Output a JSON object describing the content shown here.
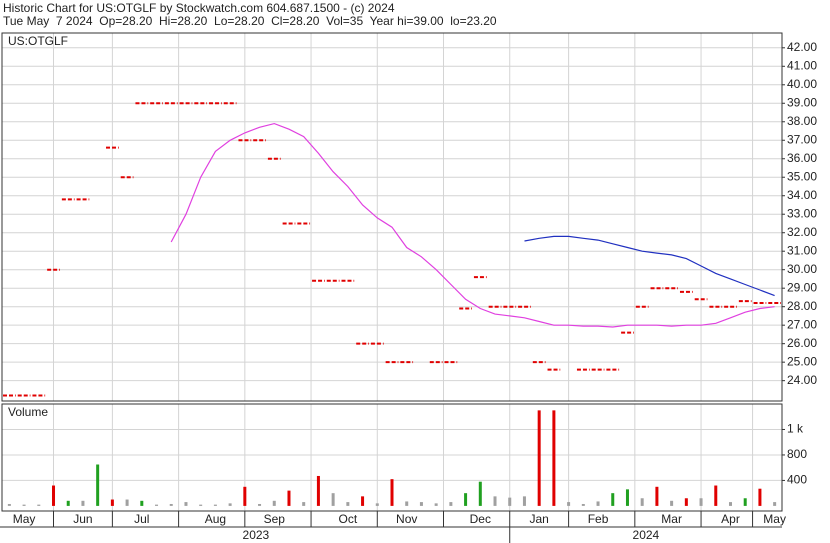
{
  "chart_data": [
    {
      "type": "line",
      "title": "Historic Chart for US:OTGLF by Stockwatch.com 604.687.1500 - (c) 2024",
      "subtitle": "Tue May  7 2024  Op=28.20  Hi=28.20  Lo=28.20  Cl=28.20  Vol=35  Year hi=39.00  lo=23.20",
      "label": "US:OTGLF",
      "ylim": [
        22.9,
        42.8
      ],
      "yticks": [
        {
          "value": 24,
          "label": "24.00"
        },
        {
          "value": 25,
          "label": "25.00"
        },
        {
          "value": 26,
          "label": "26.00"
        },
        {
          "value": 27,
          "label": "27.00"
        },
        {
          "value": 28,
          "label": "28.00"
        },
        {
          "value": 29,
          "label": "29.00"
        },
        {
          "value": 30,
          "label": "30.00"
        },
        {
          "value": 31,
          "label": "31.00"
        },
        {
          "value": 32,
          "label": "32.00"
        },
        {
          "value": 33,
          "label": "33.00"
        },
        {
          "value": 34,
          "label": "34.00"
        },
        {
          "value": 35,
          "label": "35.00"
        },
        {
          "value": 36,
          "label": "36.00"
        },
        {
          "value": 37,
          "label": "37.00"
        },
        {
          "value": 38,
          "label": "38.00"
        },
        {
          "value": 39,
          "label": "39.00"
        },
        {
          "value": 40,
          "label": "40.00"
        },
        {
          "value": 41,
          "label": "41.00"
        },
        {
          "value": 42,
          "label": "42.00"
        }
      ],
      "grid": true,
      "series": [
        {
          "color": "#e00000",
          "style": "dash",
          "values": [
            23.2,
            23.2,
            23.2,
            30.0,
            33.8,
            33.8,
            null,
            36.6,
            35.0,
            39.0,
            39.0,
            39.0,
            39.0,
            39.0,
            39.0,
            39.0,
            37.0,
            37.0,
            36.0,
            32.5,
            32.5,
            29.4,
            29.4,
            29.4,
            26.0,
            26.0,
            25.0,
            25.0,
            null,
            25.0,
            25.0,
            27.9,
            29.6,
            28.0,
            28.0,
            28.0,
            25.0,
            24.6,
            null,
            24.6,
            24.6,
            24.6,
            26.6,
            28.0,
            29.0,
            29.0,
            28.8,
            28.4,
            28.0,
            28.0,
            28.3,
            28.2,
            28.2
          ]
        },
        {
          "color": "#e040e0",
          "style": "line",
          "values": [
            null,
            null,
            null,
            null,
            null,
            null,
            null,
            null,
            null,
            null,
            null,
            31.5,
            33.0,
            35.0,
            36.4,
            37.0,
            37.4,
            37.7,
            37.9,
            37.6,
            37.2,
            36.3,
            35.3,
            34.5,
            33.5,
            32.8,
            32.3,
            31.2,
            30.7,
            30.0,
            29.2,
            28.4,
            27.9,
            27.6,
            27.5,
            27.4,
            27.2,
            27.0,
            27.0,
            26.95,
            26.95,
            26.9,
            27.0,
            27.0,
            27.0,
            26.95,
            27.0,
            27.0,
            27.1,
            27.4,
            27.7,
            27.9,
            28.0
          ]
        },
        {
          "color": "#2030c0",
          "style": "line",
          "values": [
            null,
            null,
            null,
            null,
            null,
            null,
            null,
            null,
            null,
            null,
            null,
            null,
            null,
            null,
            null,
            null,
            null,
            null,
            null,
            null,
            null,
            null,
            null,
            null,
            null,
            null,
            null,
            null,
            null,
            null,
            null,
            null,
            null,
            null,
            null,
            31.55,
            31.7,
            31.8,
            31.8,
            31.7,
            31.6,
            31.4,
            31.2,
            31.0,
            30.9,
            30.8,
            30.6,
            30.2,
            29.8,
            29.5,
            29.2,
            28.9,
            28.6
          ]
        }
      ]
    },
    {
      "type": "bar",
      "title": "Volume",
      "categories": [
        null,
        "May",
        null,
        null,
        null,
        "Jun",
        null,
        null,
        null,
        "Jul",
        null,
        null,
        null,
        null,
        "Aug",
        null,
        null,
        null,
        "Sep",
        null,
        null,
        null,
        null,
        "Oct",
        null,
        null,
        null,
        "Nov",
        null,
        null,
        null,
        null,
        "Dec",
        null,
        null,
        null,
        "Jan",
        null,
        null,
        null,
        "Feb",
        null,
        null,
        null,
        null,
        "Mar",
        null,
        null,
        null,
        "Apr",
        null,
        null,
        "May"
      ],
      "values": [
        30,
        20,
        20,
        320,
        80,
        80,
        650,
        100,
        100,
        80,
        20,
        30,
        60,
        20,
        20,
        40,
        300,
        30,
        80,
        240,
        60,
        470,
        200,
        60,
        150,
        40,
        420,
        70,
        60,
        40,
        60,
        200,
        380,
        150,
        130,
        150,
        1500,
        1500,
        60,
        30,
        70,
        200,
        260,
        120,
        300,
        80,
        120,
        120,
        320,
        60,
        120,
        270,
        60
      ],
      "colors": [
        "#a0a0a0",
        "#a0a0a0",
        "#a0a0a0",
        "#e00000",
        "#20a020",
        "#a0a0a0",
        "#20a020",
        "#e00000",
        "#a0a0a0",
        "#20a020",
        "#a0a0a0",
        "#a0a0a0",
        "#a0a0a0",
        "#a0a0a0",
        "#a0a0a0",
        "#a0a0a0",
        "#e00000",
        "#a0a0a0",
        "#a0a0a0",
        "#e00000",
        "#a0a0a0",
        "#e00000",
        "#a0a0a0",
        "#a0a0a0",
        "#e00000",
        "#a0a0a0",
        "#e00000",
        "#a0a0a0",
        "#a0a0a0",
        "#a0a0a0",
        "#a0a0a0",
        "#20a020",
        "#20a020",
        "#a0a0a0",
        "#a0a0a0",
        "#a0a0a0",
        "#e00000",
        "#e00000",
        "#a0a0a0",
        "#a0a0a0",
        "#a0a0a0",
        "#20a020",
        "#20a020",
        "#a0a0a0",
        "#e00000",
        "#a0a0a0",
        "#e00000",
        "#a0a0a0",
        "#e00000",
        "#a0a0a0",
        "#20a020",
        "#e00000",
        "#a0a0a0"
      ],
      "ylim": [
        -80,
        1600
      ],
      "yticks": [
        400,
        800,
        {
          "value": 1200,
          "label": "1 k"
        }
      ],
      "grid": true,
      "year_labels": [
        "2023",
        "2024"
      ]
    }
  ]
}
